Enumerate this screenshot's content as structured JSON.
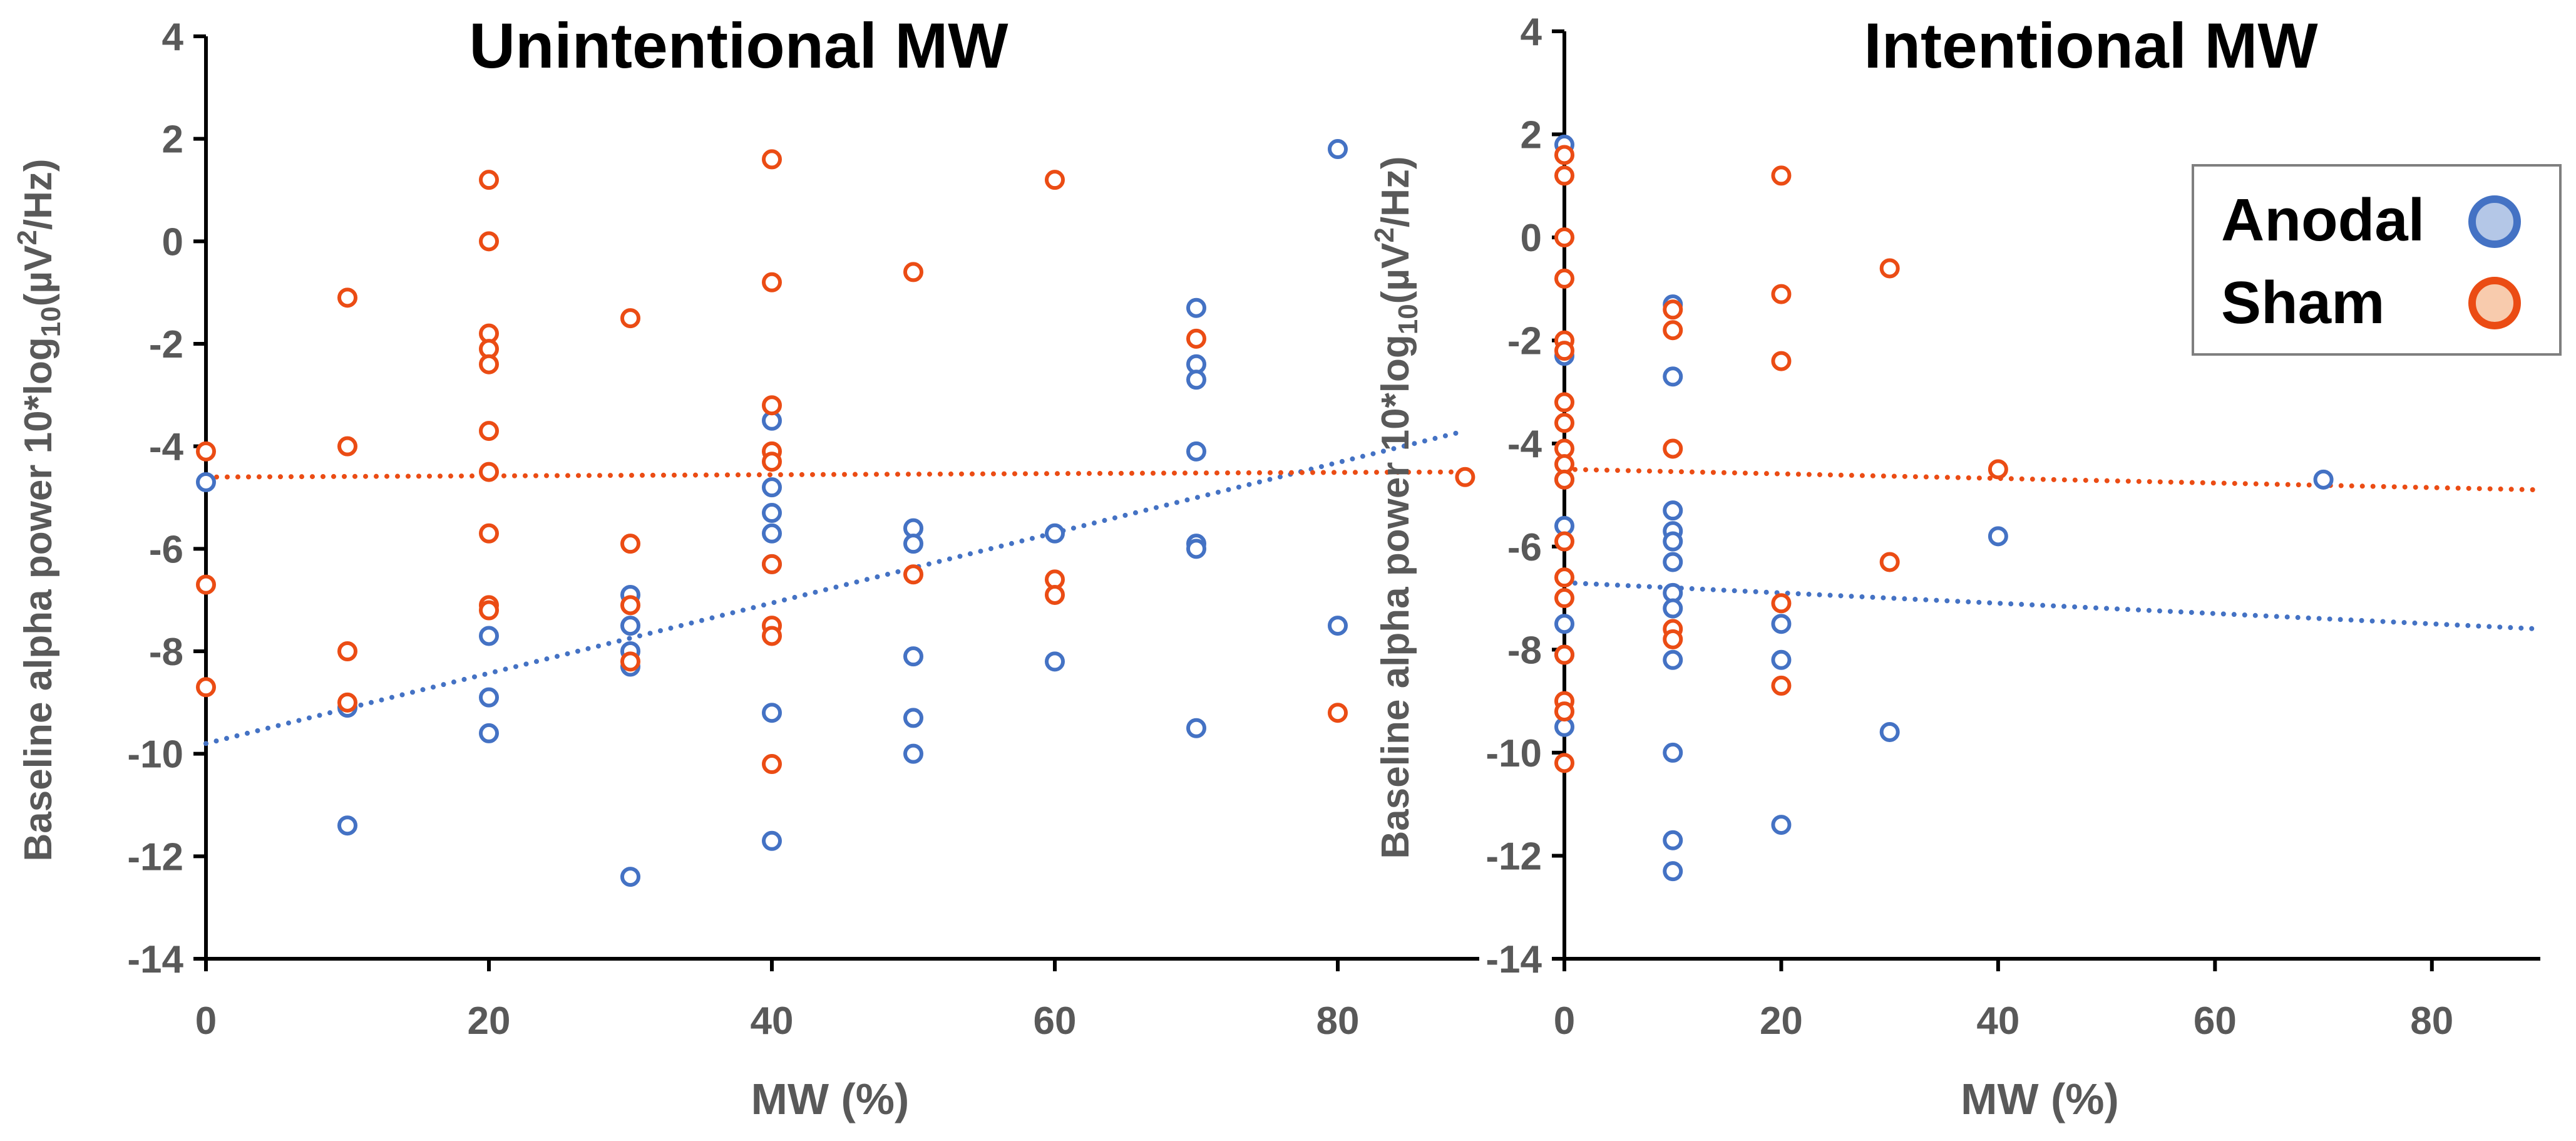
{
  "colors": {
    "anodal": "#4472C4",
    "sham": "#EB4C14",
    "axis": "#000000",
    "text": "#595959"
  },
  "legend": {
    "entries": [
      {
        "label": "Anodal",
        "series": "anodal"
      },
      {
        "label": "Sham",
        "series": "sham"
      }
    ]
  },
  "chart_data": [
    {
      "type": "scatter",
      "title": "Unintentional MW",
      "xlabel": "MW (%)",
      "ylabel": "Baseline alpha power 10*log10(µV2/Hz)",
      "xlim": [
        0,
        90
      ],
      "ylim": [
        -14,
        4
      ],
      "xticks": [
        0,
        20,
        40,
        60,
        80
      ],
      "yticks": [
        4,
        2,
        0,
        -2,
        -4,
        -6,
        -8,
        -10,
        -12,
        -14
      ],
      "grid": false,
      "series": [
        {
          "name": "Anodal",
          "key": "anodal",
          "points": [
            [
              0,
              -4.7
            ],
            [
              10,
              -9.1
            ],
            [
              10,
              -11.4
            ],
            [
              20,
              -7.7
            ],
            [
              20,
              -8.9
            ],
            [
              20,
              -9.6
            ],
            [
              30,
              -6.9
            ],
            [
              30,
              -7.5
            ],
            [
              30,
              -8.0
            ],
            [
              30,
              -8.3
            ],
            [
              30,
              -12.4
            ],
            [
              40,
              -3.5
            ],
            [
              40,
              -4.8
            ],
            [
              40,
              -5.3
            ],
            [
              40,
              -5.7
            ],
            [
              40,
              -6.3
            ],
            [
              40,
              -9.2
            ],
            [
              40,
              -11.7
            ],
            [
              50,
              -5.6
            ],
            [
              50,
              -5.9
            ],
            [
              50,
              -8.1
            ],
            [
              50,
              -9.3
            ],
            [
              50,
              -10.0
            ],
            [
              60,
              -5.7
            ],
            [
              60,
              -8.2
            ],
            [
              70,
              -1.3
            ],
            [
              70,
              -2.4
            ],
            [
              70,
              -2.7
            ],
            [
              70,
              -4.1
            ],
            [
              70,
              -5.9
            ],
            [
              70,
              -6.0
            ],
            [
              70,
              -9.5
            ],
            [
              80,
              1.8
            ],
            [
              80,
              -7.5
            ]
          ],
          "trendline": [
            [
              0,
              -9.8
            ],
            [
              89,
              -3.7
            ]
          ]
        },
        {
          "name": "Sham",
          "key": "sham",
          "points": [
            [
              0,
              -4.1
            ],
            [
              0,
              -6.7
            ],
            [
              0,
              -8.7
            ],
            [
              10,
              -1.1
            ],
            [
              10,
              -4.0
            ],
            [
              10,
              -8.0
            ],
            [
              10,
              -9.0
            ],
            [
              20,
              1.2
            ],
            [
              20,
              0.0
            ],
            [
              20,
              -1.8
            ],
            [
              20,
              -2.1
            ],
            [
              20,
              -2.4
            ],
            [
              20,
              -3.7
            ],
            [
              20,
              -4.5
            ],
            [
              20,
              -5.7
            ],
            [
              20,
              -7.1
            ],
            [
              20,
              -7.2
            ],
            [
              30,
              -1.5
            ],
            [
              30,
              -5.9
            ],
            [
              30,
              -7.1
            ],
            [
              30,
              -8.2
            ],
            [
              40,
              1.6
            ],
            [
              40,
              -0.8
            ],
            [
              40,
              -3.2
            ],
            [
              40,
              -4.1
            ],
            [
              40,
              -4.3
            ],
            [
              40,
              -6.3
            ],
            [
              40,
              -7.5
            ],
            [
              40,
              -7.7
            ],
            [
              40,
              -10.2
            ],
            [
              50,
              -0.6
            ],
            [
              50,
              -6.5
            ],
            [
              60,
              1.2
            ],
            [
              60,
              -6.6
            ],
            [
              60,
              -6.9
            ],
            [
              70,
              -1.9
            ],
            [
              80,
              -9.2
            ],
            [
              89,
              -4.6
            ]
          ],
          "trendline": [
            [
              0,
              -4.6
            ],
            [
              89,
              -4.5
            ]
          ]
        }
      ]
    },
    {
      "type": "scatter",
      "title": "Intentional MW",
      "xlabel": "MW (%)",
      "ylabel": "Baseline alpha power 10*log10(µV2/Hz)",
      "xlim": [
        0,
        90
      ],
      "ylim": [
        -14,
        4
      ],
      "xticks": [
        0,
        20,
        40,
        60,
        80
      ],
      "yticks": [
        4,
        2,
        0,
        -2,
        -4,
        -6,
        -8,
        -10,
        -12,
        -14
      ],
      "grid": false,
      "series": [
        {
          "name": "Anodal",
          "key": "anodal",
          "points": [
            [
              0,
              1.8
            ],
            [
              0,
              -2.3
            ],
            [
              0,
              -4.7
            ],
            [
              0,
              -5.6
            ],
            [
              0,
              -7.5
            ],
            [
              0,
              -8.1
            ],
            [
              0,
              -9.5
            ],
            [
              10,
              -1.3
            ],
            [
              10,
              -2.7
            ],
            [
              10,
              -5.3
            ],
            [
              10,
              -5.7
            ],
            [
              10,
              -5.9
            ],
            [
              10,
              -6.3
            ],
            [
              10,
              -6.9
            ],
            [
              10,
              -7.2
            ],
            [
              10,
              -8.2
            ],
            [
              10,
              -10.0
            ],
            [
              10,
              -11.7
            ],
            [
              10,
              -12.3
            ],
            [
              20,
              -7.5
            ],
            [
              20,
              -8.2
            ],
            [
              20,
              -11.4
            ],
            [
              30,
              -9.6
            ],
            [
              40,
              -5.8
            ],
            [
              70,
              -4.7
            ]
          ],
          "trendline": [
            [
              0,
              -6.7
            ],
            [
              90,
              -7.6
            ]
          ]
        },
        {
          "name": "Sham",
          "key": "sham",
          "points": [
            [
              0,
              1.6
            ],
            [
              0,
              1.2
            ],
            [
              0,
              0.0
            ],
            [
              0,
              -0.8
            ],
            [
              0,
              -2.0
            ],
            [
              0,
              -2.2
            ],
            [
              0,
              -3.2
            ],
            [
              0,
              -3.6
            ],
            [
              0,
              -4.1
            ],
            [
              0,
              -4.4
            ],
            [
              0,
              -4.7
            ],
            [
              0,
              -5.9
            ],
            [
              0,
              -6.6
            ],
            [
              0,
              -7.0
            ],
            [
              0,
              -8.1
            ],
            [
              0,
              -9.0
            ],
            [
              0,
              -9.2
            ],
            [
              0,
              -10.2
            ],
            [
              10,
              -1.4
            ],
            [
              10,
              -1.8
            ],
            [
              10,
              -4.1
            ],
            [
              10,
              -7.6
            ],
            [
              10,
              -7.8
            ],
            [
              20,
              1.2
            ],
            [
              20,
              -1.1
            ],
            [
              20,
              -2.4
            ],
            [
              20,
              -7.1
            ],
            [
              20,
              -8.7
            ],
            [
              30,
              -0.6
            ],
            [
              30,
              -6.3
            ],
            [
              40,
              -4.5
            ]
          ],
          "trendline": [
            [
              0,
              -4.5
            ],
            [
              90,
              -4.9
            ]
          ]
        }
      ]
    }
  ]
}
